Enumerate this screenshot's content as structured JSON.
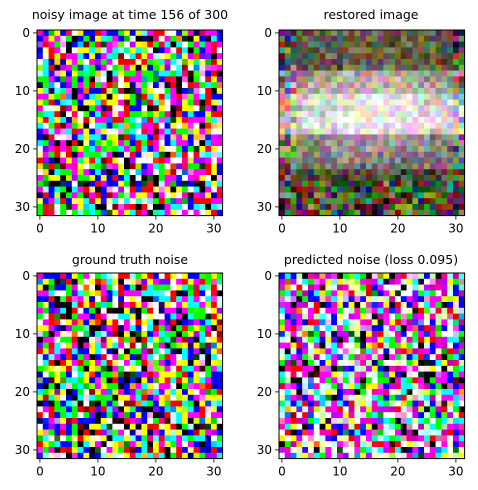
{
  "chart_data": [
    {
      "type": "heatmap",
      "title": "noisy image at time 156 of 300",
      "content": "noise",
      "seed": 17,
      "xticks": [
        "0",
        "10",
        "20",
        "30"
      ],
      "yticks": [
        "0",
        "10",
        "20",
        "30"
      ],
      "xlim": [
        -0.5,
        31.5
      ],
      "ylim": [
        31.5,
        -0.5
      ]
    },
    {
      "type": "heatmap",
      "title": "restored image",
      "content": "restored",
      "seed": 91,
      "xticks": [
        "0",
        "10",
        "20",
        "30"
      ],
      "yticks": [
        "0",
        "10",
        "20",
        "30"
      ],
      "xlim": [
        -0.5,
        31.5
      ],
      "ylim": [
        31.5,
        -0.5
      ]
    },
    {
      "type": "heatmap",
      "title": "ground truth noise",
      "content": "noise",
      "seed": 43,
      "xticks": [
        "0",
        "10",
        "20",
        "30"
      ],
      "yticks": [
        "0",
        "10",
        "20",
        "30"
      ],
      "xlim": [
        -0.5,
        31.5
      ],
      "ylim": [
        31.5,
        -0.5
      ]
    },
    {
      "type": "heatmap",
      "title": "predicted noise (loss 0.095)",
      "content": "noise-pink",
      "seed": 77,
      "xticks": [
        "0",
        "10",
        "20",
        "30"
      ],
      "yticks": [
        "0",
        "10",
        "20",
        "30"
      ],
      "xlim": [
        -0.5,
        31.5
      ],
      "ylim": [
        31.5,
        -0.5
      ]
    }
  ]
}
